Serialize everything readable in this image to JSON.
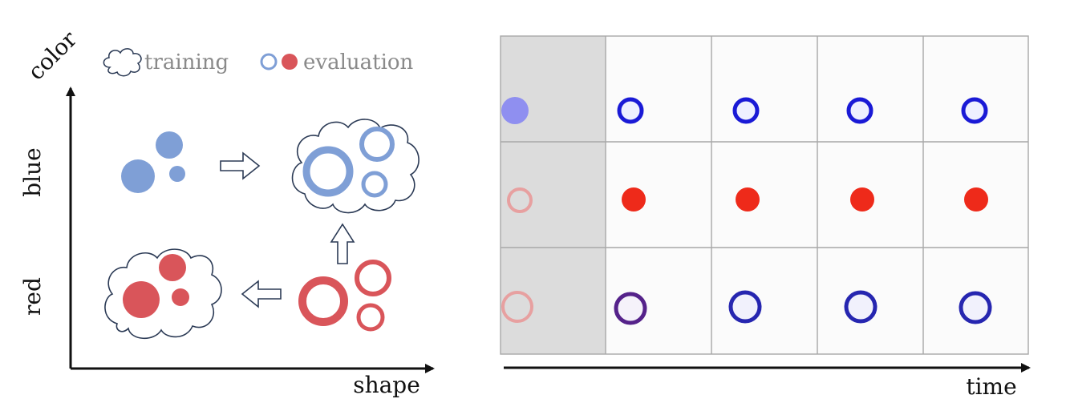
{
  "left_panel": {
    "axis_x_label": "shape",
    "axis_y_label": "color",
    "row_labels": {
      "top": "blue",
      "bottom": "red"
    },
    "legend": {
      "training_label": "training",
      "evaluation_label": "evaluation"
    },
    "colors": {
      "blue": "#7f9fd6",
      "red": "#d9555a",
      "outline": "#2b3a55"
    }
  },
  "right_panel": {
    "time_label": "time",
    "grid": {
      "rows": 3,
      "cols": 5
    },
    "colors": {
      "grid_line": "#a8a8a8",
      "first_column_bg": "#dcdcdc",
      "cell_bg": "#fbfbfb",
      "input_blue": "#8f8ff0",
      "input_pink": "#e7a0a0",
      "output_blue": "#1a1ad6",
      "output_red": "#ee2a1a",
      "output_purple": "#55228a"
    },
    "rows": [
      {
        "input": "blue-filled-circle",
        "outputs": [
          "blue-ring",
          "blue-ring",
          "blue-ring",
          "blue-ring"
        ]
      },
      {
        "input": "pink-ring",
        "outputs": [
          "red-filled-circle",
          "red-filled-circle",
          "red-filled-circle",
          "red-filled-circle"
        ]
      },
      {
        "input": "pink-ring",
        "outputs": [
          "purple-ring",
          "blue-ring",
          "blue-ring",
          "blue-ring"
        ]
      }
    ]
  }
}
